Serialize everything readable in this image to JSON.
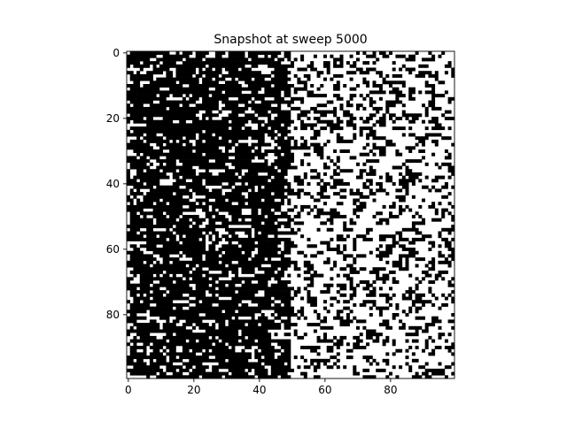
{
  "chart_data": {
    "type": "heatmap",
    "title": "Snapshot at sweep 5000",
    "xlabel": "",
    "ylabel": "",
    "grid": false,
    "colormap": {
      "low": "#000000",
      "high": "#ffffff"
    },
    "value_range": [
      -1,
      1
    ],
    "shape": [
      100,
      100
    ],
    "xlim": [
      -0.5,
      99.5
    ],
    "ylim": [
      99.5,
      -0.5
    ],
    "y_origin": "top",
    "xticks": [
      0,
      20,
      40,
      60,
      80
    ],
    "yticks": [
      0,
      20,
      40,
      60,
      80
    ],
    "regions": [
      {
        "columns": [
          0,
          49
        ],
        "fraction_high": 0.4
      },
      {
        "columns": [
          50,
          99
        ],
        "fraction_high": 0.75
      }
    ]
  }
}
